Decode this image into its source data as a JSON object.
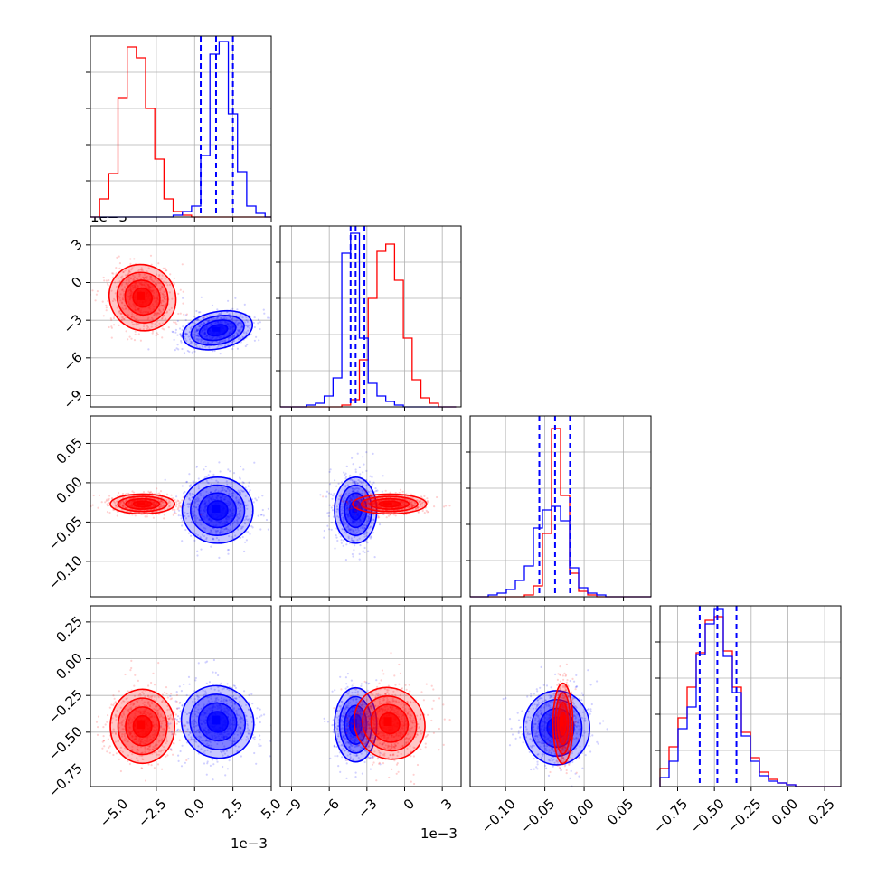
{
  "figure": {
    "offset_labels": [
      "1e−3",
      "1e−3",
      "1e−3"
    ]
  },
  "chart_data": {
    "type": "corner",
    "parameters": 4,
    "colors": {
      "series_a": "#0000ff",
      "series_b": "#ff0000"
    },
    "grid": true,
    "ranges": [
      [
        -0.0068,
        0.005
      ],
      [
        -0.0099,
        0.0045
      ],
      [
        -0.145,
        0.085
      ],
      [
        -0.87,
        0.36
      ]
    ],
    "ticks": [
      {
        "values": [
          -0.005,
          -0.0025,
          0.0,
          0.0025,
          0.005
        ],
        "labels": [
          "−5.0",
          "−2.5",
          "0.0",
          "2.5",
          "5.0"
        ]
      },
      {
        "values": [
          -0.009,
          -0.006,
          -0.003,
          0.0,
          0.003
        ],
        "labels": [
          "−9",
          "−6",
          "−3",
          "0",
          "3"
        ]
      },
      {
        "values": [
          -0.1,
          -0.05,
          0.0,
          0.05
        ],
        "labels": [
          "−0.10",
          "−0.05",
          "0.00",
          "0.05"
        ]
      },
      {
        "values": [
          -0.75,
          -0.5,
          -0.25,
          0.0,
          0.25
        ],
        "labels": [
          "−0.75",
          "−0.50",
          "−0.25",
          "0.00",
          "0.25"
        ]
      }
    ],
    "quantile_lines": [
      [
        0.0004,
        0.0014,
        0.0025
      ],
      [
        -0.0043,
        -0.0039,
        -0.0032
      ],
      [
        -0.057,
        -0.037,
        -0.018
      ],
      [
        -0.6,
        -0.48,
        -0.35
      ]
    ],
    "histograms": [
      {
        "edges": [
          -0.0068,
          -0.0062,
          -0.0056,
          -0.005,
          -0.0044,
          -0.0038,
          -0.0032,
          -0.0026,
          -0.002,
          -0.0014,
          -0.0008,
          -0.0002,
          0.0004,
          0.001,
          0.0016,
          0.0022,
          0.0028,
          0.0034,
          0.004,
          0.0046,
          0.005
        ],
        "blue": [
          0,
          0,
          0,
          0,
          0,
          0,
          0,
          0,
          0,
          0.01,
          0.03,
          0.06,
          0.34,
          0.9,
          0.97,
          0.57,
          0.25,
          0.06,
          0.02,
          0
        ],
        "red": [
          0,
          0.1,
          0.24,
          0.66,
          0.94,
          0.88,
          0.6,
          0.32,
          0.1,
          0.03,
          0.01,
          0,
          0,
          0,
          0,
          0,
          0,
          0,
          0,
          0
        ]
      },
      {
        "edges": [
          -0.0099,
          -0.0092,
          -0.0085,
          -0.0078,
          -0.0071,
          -0.0064,
          -0.0057,
          -0.005,
          -0.0043,
          -0.0036,
          -0.0029,
          -0.0022,
          -0.0015,
          -0.0008,
          -0.0001,
          0.0006,
          0.0013,
          0.002,
          0.0027,
          0.0034,
          0.0041
        ],
        "blue": [
          0,
          0,
          0,
          0.01,
          0.02,
          0.06,
          0.16,
          0.85,
          0.96,
          0.38,
          0.13,
          0.06,
          0.03,
          0.01,
          0,
          0,
          0,
          0,
          0,
          0
        ],
        "red": [
          0,
          0,
          0,
          0,
          0,
          0,
          0,
          0.01,
          0.04,
          0.26,
          0.6,
          0.86,
          0.9,
          0.7,
          0.38,
          0.15,
          0.05,
          0.02,
          0,
          0
        ]
      },
      {
        "edges": [
          -0.145,
          -0.1335,
          -0.122,
          -0.1105,
          -0.099,
          -0.0875,
          -0.076,
          -0.0645,
          -0.053,
          -0.0415,
          -0.03,
          -0.0185,
          -0.007,
          0.0045,
          0.016,
          0.0275,
          0.039,
          0.0505,
          0.062,
          0.0735,
          0.085
        ],
        "blue": [
          0,
          0,
          0.01,
          0.02,
          0.04,
          0.09,
          0.17,
          0.38,
          0.48,
          0.5,
          0.42,
          0.16,
          0.05,
          0.02,
          0.01,
          0,
          0,
          0,
          0,
          0
        ],
        "red": [
          0,
          0,
          0,
          0,
          0,
          0,
          0.01,
          0.06,
          0.35,
          0.93,
          0.56,
          0.13,
          0.03,
          0.01,
          0,
          0,
          0,
          0,
          0,
          0
        ]
      },
      {
        "edges": [
          -0.87,
          -0.8085,
          -0.747,
          -0.6855,
          -0.624,
          -0.5625,
          -0.501,
          -0.4395,
          -0.378,
          -0.3165,
          -0.255,
          -0.1935,
          -0.132,
          -0.0705,
          -0.009,
          0.0525,
          0.114,
          0.1755,
          0.237,
          0.2985,
          0.36
        ],
        "blue": [
          0.05,
          0.14,
          0.32,
          0.44,
          0.73,
          0.9,
          0.98,
          0.72,
          0.52,
          0.28,
          0.14,
          0.06,
          0.03,
          0.02,
          0.01,
          0,
          0,
          0,
          0,
          0
        ],
        "red": [
          0.1,
          0.22,
          0.38,
          0.55,
          0.74,
          0.92,
          0.94,
          0.75,
          0.55,
          0.3,
          0.16,
          0.08,
          0.04,
          0.02,
          0.01,
          0,
          0,
          0,
          0,
          0
        ]
      }
    ],
    "blue_means": [
      0.0015,
      -0.0038,
      -0.035,
      -0.47
    ],
    "red_means": [
      -0.0034,
      -0.0012,
      -0.027,
      -0.44
    ],
    "pairs": [
      {
        "row": 1,
        "col": 0,
        "blue": {
          "mean": [
            0.0015,
            -0.0038
          ],
          "sd": [
            0.0011,
            0.0007
          ],
          "angle": 12
        },
        "red": {
          "mean": [
            -0.0034,
            -0.0012
          ],
          "sd": [
            0.001,
            0.0013
          ],
          "angle": 48
        }
      },
      {
        "row": 2,
        "col": 0,
        "blue": {
          "mean": [
            0.0015,
            -0.035
          ],
          "sd": [
            0.0011,
            0.02
          ],
          "angle": 0
        },
        "red": {
          "mean": [
            -0.0034,
            -0.027
          ],
          "sd": [
            0.001,
            0.006
          ],
          "angle": 0
        }
      },
      {
        "row": 2,
        "col": 1,
        "blue": {
          "mean": [
            -0.0039,
            -0.035
          ],
          "sd": [
            0.0008,
            0.02
          ],
          "angle": 0
        },
        "red": {
          "mean": [
            -0.0012,
            -0.027
          ],
          "sd": [
            0.0014,
            0.006
          ],
          "angle": 0
        }
      },
      {
        "row": 3,
        "col": 0,
        "blue": {
          "mean": [
            0.0015,
            -0.43
          ],
          "sd": [
            0.0011,
            0.12
          ],
          "angle": 45
        },
        "red": {
          "mean": [
            -0.0034,
            -0.46
          ],
          "sd": [
            0.001,
            0.12
          ],
          "angle": 0
        }
      },
      {
        "row": 3,
        "col": 1,
        "blue": {
          "mean": [
            -0.0039,
            -0.45
          ],
          "sd": [
            0.0008,
            0.12
          ],
          "angle": 0
        },
        "red": {
          "mean": [
            -0.0012,
            -0.44
          ],
          "sd": [
            0.0013,
            0.12
          ],
          "angle": 40
        }
      },
      {
        "row": 3,
        "col": 2,
        "blue": {
          "mean": [
            -0.035,
            -0.47
          ],
          "sd": [
            0.02,
            0.12
          ],
          "angle": 0
        },
        "red": {
          "mean": [
            -0.027,
            -0.44
          ],
          "sd": [
            0.006,
            0.13
          ],
          "angle": 0
        }
      }
    ]
  }
}
